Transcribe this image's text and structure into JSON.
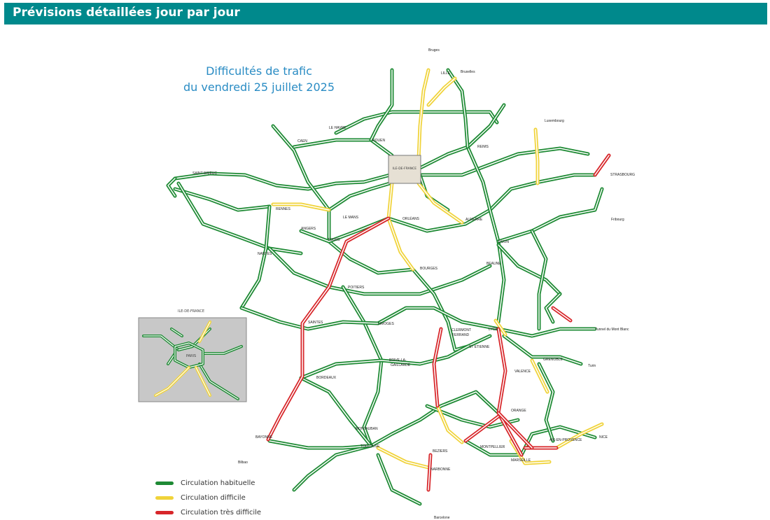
{
  "header": {
    "title": "Prévisions détaillées jour par jour"
  },
  "map": {
    "title_line1": "Difficultés de trafic",
    "title_line2": "du vendredi 25 juillet 2025",
    "inset": {
      "title": "ILE-DE-FRANCE",
      "center_label": "PARIS"
    },
    "idf_box_label": "ILE-DE-FRANCE",
    "cities": {
      "bruges": "Bruges",
      "lille": "LILLE",
      "bruxelles": "Bruxelles",
      "luxembourg": "Luxembourg",
      "le_havre": "LE HAVRE",
      "rouen": "ROUEN",
      "caen": "CAEN",
      "reims": "REIMS",
      "strasbourg": "STRASBOURG",
      "saint_brieuc": "SAINT-BRIEUC",
      "rennes": "RENNES",
      "le_mans": "LE MANS",
      "orleans": "ORLÉANS",
      "auxerre": "AUXERRE",
      "fribourg": "Fribourg",
      "angers": "ANGERS",
      "tours": "TOURS",
      "dijon": "DIJON",
      "nantes": "NANTES",
      "bourges": "BOURGES",
      "beaune": "BEAUNE",
      "poitiers": "POITIERS",
      "saintes": "SAINTES",
      "limoges": "LIMOGES",
      "clermont": "CLERMONT",
      "ferrand": "FERRAND",
      "lyon": "LYON",
      "mont_blanc": "Tunnel du Mont Blanc",
      "st_etienne": "ST ETIENNE",
      "grenoble": "GRENOBLE",
      "brive": "BRIVE-LA-",
      "gaillarde": "GAILLARDE",
      "turin": "Turin",
      "valence": "VALENCE",
      "bordeaux": "BORDEAUX",
      "orange": "ORANGE",
      "montauban": "MONTAUBAN",
      "bayonne": "BAYONNE",
      "toulouse": "TOULOUSE",
      "aix": "AIX-EN-PROVENCE",
      "nice": "NICE",
      "beziers": "BEZIERS",
      "montpellier": "MONTPELLIER",
      "marseille": "MARSEILLE",
      "narbonne": "NARBONNE",
      "bilbao": "Bilbao",
      "barcelone": "Barcelone"
    }
  },
  "legend": [
    {
      "label": "Circulation habituelle",
      "color": "#1e8a34"
    },
    {
      "label": "Circulation difficile",
      "color": "#f0d33a"
    },
    {
      "label": "Circulation très difficile",
      "color": "#d7262a"
    }
  ],
  "colors": {
    "header": "#00898c",
    "title": "#2a8cc4",
    "normal": "#1e8a34",
    "difficult": "#f0d33a",
    "very_difficult": "#d7262a",
    "inset_bg": "#c8c8c8"
  }
}
